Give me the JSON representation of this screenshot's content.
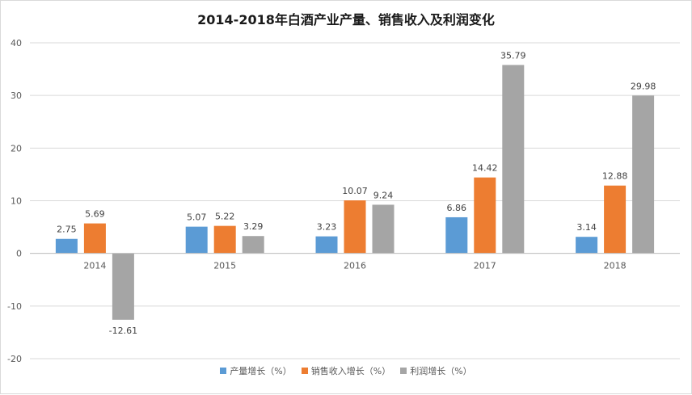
{
  "chart_data": {
    "type": "bar",
    "title": "2014-2018年白酒产业产量、销售收入及利润变化",
    "categories": [
      "2014",
      "2015",
      "2016",
      "2017",
      "2018"
    ],
    "series": [
      {
        "name": "产量增长（%）",
        "color": "#5b9bd5",
        "values": [
          2.75,
          5.07,
          3.23,
          6.86,
          3.14
        ],
        "labels": [
          "2.75",
          "5.07",
          "3.23",
          "6.86",
          "3.14"
        ]
      },
      {
        "name": "销售收入增长（%）",
        "color": "#ed7d31",
        "values": [
          5.69,
          5.22,
          10.07,
          14.42,
          12.88
        ],
        "labels": [
          "5.69",
          "5.22",
          "10.07",
          "14.42",
          "12.88"
        ]
      },
      {
        "name": "利润增长（%）",
        "color": "#a5a5a5",
        "values": [
          -12.61,
          3.29,
          9.24,
          35.79,
          29.98
        ],
        "labels": [
          "-12.61",
          "3.29",
          "9.24",
          "35.79",
          "29.98"
        ]
      }
    ],
    "ylim": [
      -20,
      40
    ],
    "yticks": [
      "-20",
      "-10",
      "0",
      "10",
      "20",
      "30",
      "40"
    ],
    "grid": true,
    "legend_position": "bottom"
  }
}
